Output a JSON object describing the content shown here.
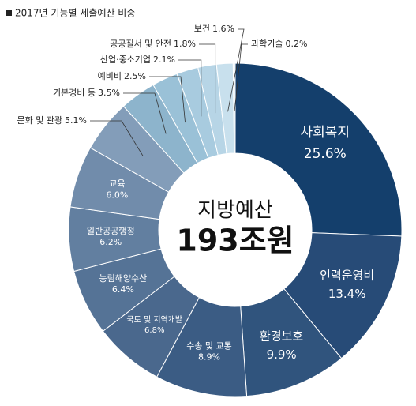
{
  "chart_data": {
    "type": "donut",
    "title": "2017년 기능별 세출예산 비중",
    "center_label": [
      "지방예산",
      "193조원"
    ],
    "categories": [
      "사회복지",
      "인력운영비",
      "환경보호",
      "수송 및 교통",
      "국토 및 지역개발",
      "농림해양수산",
      "일반공공행정",
      "교육",
      "문화 및 관광",
      "기본경비 등",
      "예비비",
      "산업·중소기업",
      "공공질서 및 안전",
      "보건",
      "과학기술"
    ],
    "values": [
      25.6,
      13.4,
      9.9,
      8.9,
      6.8,
      6.4,
      6.2,
      6.0,
      5.1,
      3.5,
      2.5,
      2.1,
      1.8,
      1.6,
      0.2
    ],
    "value_labels": [
      "25.6%",
      "13.4%",
      "9.9%",
      "8.9%",
      "6.8%",
      "6.4%",
      "6.2%",
      "6.0%",
      "5.1%",
      "3.5%",
      "2.5%",
      "2.1%",
      "1.8%",
      "1.6%",
      "0.2%"
    ],
    "colors": [
      "#143f6c",
      "#274b77",
      "#30547d",
      "#3b5c84",
      "#4a688d",
      "#557396",
      "#627fa0",
      "#718cab",
      "#839db9",
      "#8db4cc",
      "#9ac1d7",
      "#a8cbdf",
      "#b7d5e6",
      "#c8e0ed",
      "#dcecf4"
    ]
  }
}
